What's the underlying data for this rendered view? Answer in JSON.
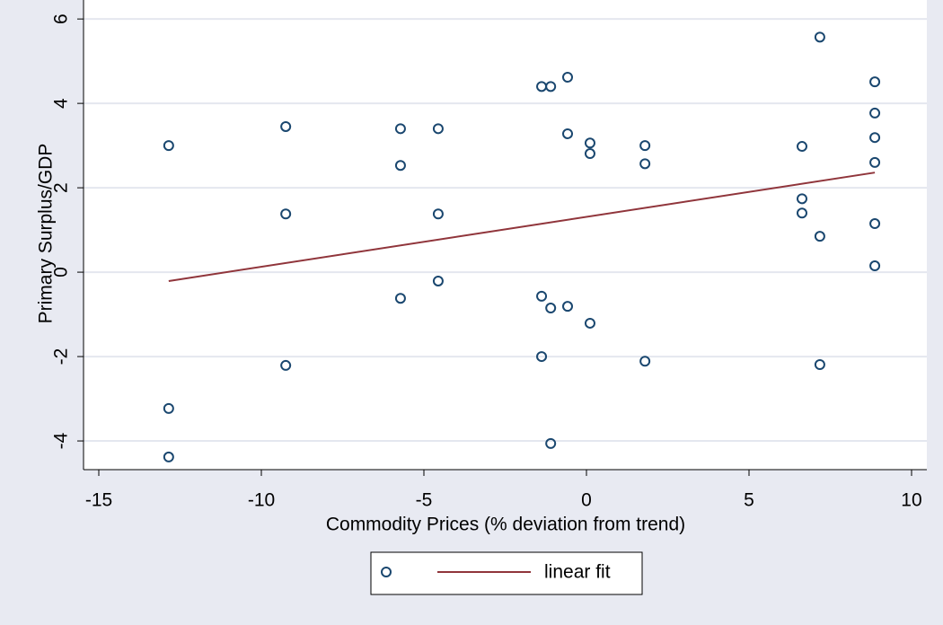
{
  "chart_data": {
    "type": "scatter",
    "xlabel": "Commodity Prices (% deviation from trend)",
    "ylabel": "Primary Surplus/GDP",
    "xlim": [
      -15.47,
      10.47
    ],
    "ylim": [
      -4.68,
      6.45
    ],
    "xticks": [
      -15,
      -10,
      -5,
      0,
      5,
      10
    ],
    "yticks": [
      -4,
      -2,
      0,
      2,
      4,
      6
    ],
    "grid": true,
    "legend": "bottom",
    "series": [
      {
        "type": "scatter",
        "color": "#1a476f",
        "x": [
          -12.85,
          -12.85,
          -12.85,
          -9.25,
          -9.25,
          -9.25,
          -5.72,
          -5.72,
          -5.72,
          -4.56,
          -4.56,
          -4.56,
          -1.38,
          -1.1,
          -0.58,
          -0.58,
          -1.38,
          -1.1,
          -0.58,
          0.11,
          0.11,
          0.11,
          -1.38,
          -1.1,
          1.8,
          1.8,
          1.8,
          6.63,
          6.63,
          6.63,
          7.18,
          7.18,
          7.18,
          8.87,
          8.87,
          8.87,
          8.87,
          8.87,
          8.87
        ],
        "values": [
          3.0,
          -3.23,
          -4.38,
          3.45,
          1.38,
          -2.21,
          3.4,
          2.53,
          -0.62,
          3.4,
          1.38,
          -0.21,
          4.4,
          4.4,
          4.62,
          3.28,
          -0.57,
          -0.85,
          -0.81,
          3.06,
          2.81,
          -1.21,
          -2.0,
          -4.06,
          3.0,
          2.57,
          -2.11,
          2.98,
          1.74,
          1.4,
          5.57,
          0.85,
          -2.19,
          4.51,
          3.77,
          3.19,
          2.6,
          1.15,
          0.15
        ]
      },
      {
        "type": "line",
        "name": "linear fit",
        "color": "#90353b",
        "x": [
          -12.85,
          8.87
        ],
        "values": [
          -0.21,
          2.36
        ]
      }
    ]
  }
}
